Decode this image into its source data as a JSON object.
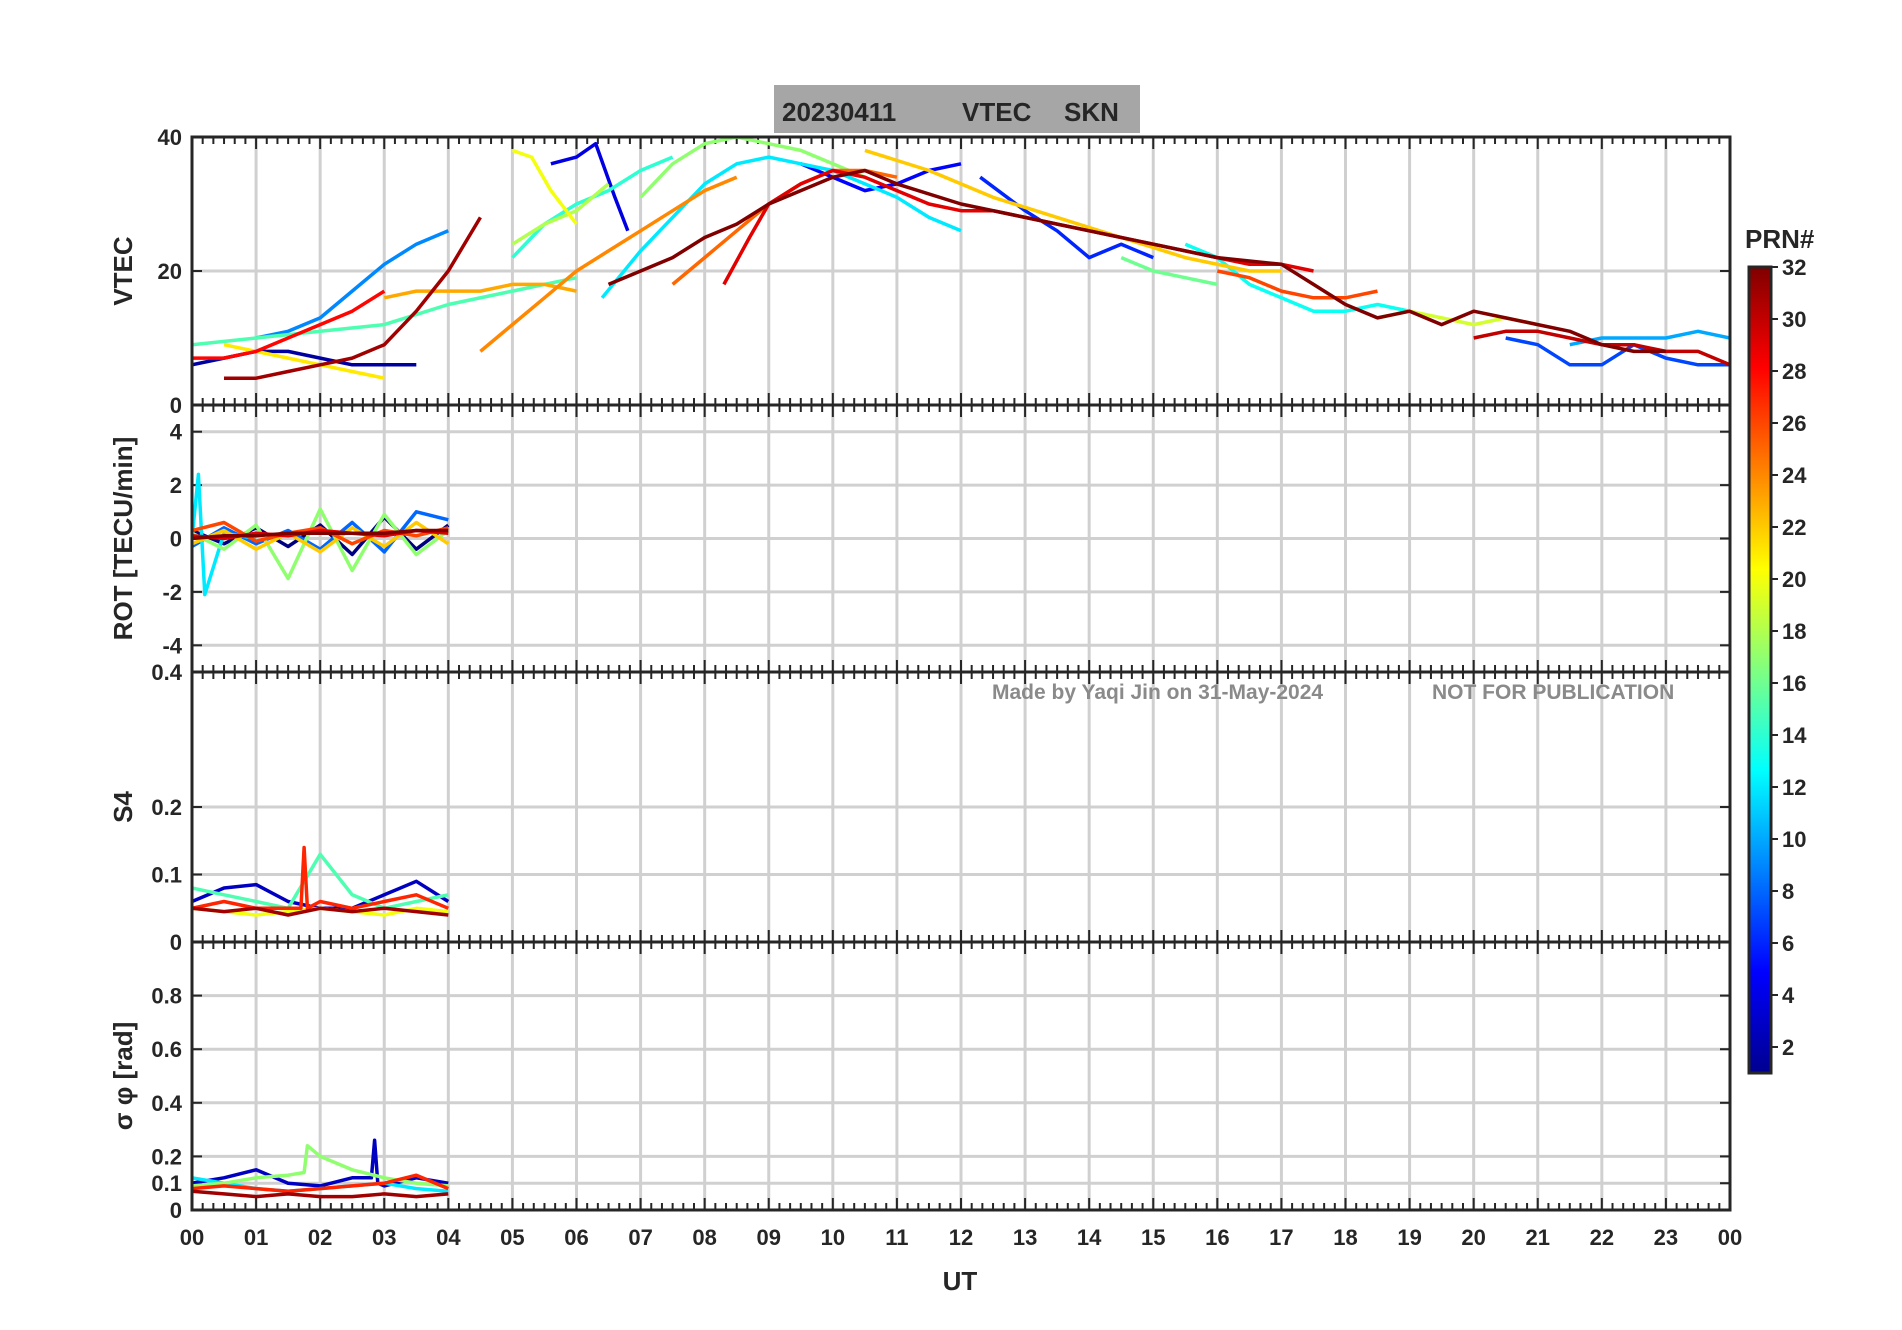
{
  "title": {
    "date": "20230411",
    "quantity": "VTEC",
    "station": "SKN"
  },
  "watermark": {
    "author": "Made by Yaqi Jin on 31-May-2024",
    "notice": "NOT FOR PUBLICATION"
  },
  "colorbar": {
    "label": "PRN#",
    "ticks": [
      "2",
      "4",
      "6",
      "8",
      "10",
      "12",
      "14",
      "16",
      "18",
      "20",
      "22",
      "24",
      "26",
      "28",
      "30",
      "32"
    ],
    "range": [
      1,
      32
    ],
    "colormap": "jet"
  },
  "chart_data": [
    {
      "type": "line",
      "panel": "vtec",
      "ylabel": "VTEC",
      "ylim": [
        0,
        40
      ],
      "yticks": [
        0,
        20,
        40
      ],
      "xlim": [
        0,
        24
      ],
      "grid": true,
      "series": [
        {
          "prn": 2,
          "x": [
            0.0,
            0.5,
            1.0,
            1.5,
            2.0,
            2.5,
            3.0,
            3.5
          ],
          "y": [
            6,
            7,
            8,
            8,
            7,
            6,
            6,
            6
          ]
        },
        {
          "prn": 4,
          "x": [
            5.6,
            6.0,
            6.3,
            6.6,
            6.8
          ],
          "y": [
            36,
            37,
            39,
            31,
            26
          ]
        },
        {
          "prn": 5,
          "x": [
            9.5,
            10.0,
            10.5,
            11.0,
            11.5,
            12.0
          ],
          "y": [
            36,
            34,
            32,
            33,
            35,
            36
          ]
        },
        {
          "prn": 6,
          "x": [
            12.3,
            13.0,
            13.5,
            14.0,
            14.5,
            15.0
          ],
          "y": [
            34,
            29,
            26,
            22,
            24,
            22
          ]
        },
        {
          "prn": 7,
          "x": [
            20.5,
            21.0,
            21.5,
            22.0,
            22.5,
            23.0,
            23.5,
            24.0
          ],
          "y": [
            10,
            9,
            6,
            6,
            9,
            7,
            6,
            6
          ]
        },
        {
          "prn": 9,
          "x": [
            1.0,
            1.5,
            2.0,
            2.5,
            3.0,
            3.5,
            4.0
          ],
          "y": [
            10,
            11,
            13,
            17,
            21,
            24,
            26
          ]
        },
        {
          "prn": 10,
          "x": [
            21.5,
            22.0,
            22.5,
            23.0,
            23.5,
            24.0
          ],
          "y": [
            9,
            10,
            10,
            10,
            11,
            10
          ]
        },
        {
          "prn": 12,
          "x": [
            6.4,
            7.0,
            7.5,
            8.0,
            8.5,
            9.0,
            9.5,
            10.0,
            10.5,
            11.0,
            11.5,
            12.0
          ],
          "y": [
            16,
            23,
            28,
            33,
            36,
            37,
            36,
            35,
            33,
            31,
            28,
            26
          ]
        },
        {
          "prn": 13,
          "x": [
            15.5,
            16.0,
            16.5,
            17.0,
            17.5,
            18.0,
            18.5,
            19.0
          ],
          "y": [
            24,
            22,
            18,
            16,
            14,
            14,
            15,
            14
          ]
        },
        {
          "prn": 14,
          "x": [
            5.0,
            5.5,
            6.0,
            6.5,
            7.0,
            7.5
          ],
          "y": [
            22,
            27,
            30,
            32,
            35,
            37
          ]
        },
        {
          "prn": 15,
          "x": [
            0.0,
            1.0,
            2.0,
            3.0,
            4.0,
            5.0,
            6.0
          ],
          "y": [
            9,
            10,
            11,
            12,
            15,
            17,
            19
          ]
        },
        {
          "prn": 16,
          "x": [
            14.5,
            15.0,
            15.5,
            16.0
          ],
          "y": [
            22,
            20,
            19,
            18
          ]
        },
        {
          "prn": 17,
          "x": [
            7.0,
            7.5,
            8.0,
            8.5,
            9.0,
            9.5,
            10.0,
            10.5
          ],
          "y": [
            31,
            36,
            39,
            40,
            39,
            38,
            36,
            34
          ]
        },
        {
          "prn": 18,
          "x": [
            5.0,
            5.5,
            6.0,
            6.5
          ],
          "y": [
            24,
            27,
            29,
            33
          ]
        },
        {
          "prn": 19,
          "x": [
            18.5,
            19.0,
            19.5,
            20.0,
            20.5,
            21.0
          ],
          "y": [
            13,
            14,
            13,
            12,
            13,
            12
          ]
        },
        {
          "prn": 20,
          "x": [
            5.0,
            5.3,
            5.6,
            6.0
          ],
          "y": [
            38,
            37,
            32,
            27
          ]
        },
        {
          "prn": 21,
          "x": [
            0.5,
            1.0,
            1.5,
            2.0,
            2.5,
            3.0
          ],
          "y": [
            9,
            8,
            7,
            6,
            5,
            4
          ]
        },
        {
          "prn": 22,
          "x": [
            10.5,
            11.5,
            12.5,
            13.5,
            14.5,
            15.5,
            16.5,
            17.0
          ],
          "y": [
            38,
            35,
            31,
            28,
            25,
            22,
            20,
            20
          ]
        },
        {
          "prn": 23,
          "x": [
            3.0,
            3.5,
            4.0,
            4.5,
            5.0,
            5.5,
            6.0
          ],
          "y": [
            16,
            17,
            17,
            17,
            18,
            18,
            17
          ]
        },
        {
          "prn": 24,
          "x": [
            4.5,
            5.0,
            5.5,
            6.0,
            6.5,
            7.0,
            7.5,
            8.0,
            8.5
          ],
          "y": [
            8,
            12,
            16,
            20,
            23,
            26,
            29,
            32,
            34
          ]
        },
        {
          "prn": 25,
          "x": [
            7.5,
            8.0,
            8.5,
            9.0,
            9.5,
            10.0,
            10.5,
            11.0
          ],
          "y": [
            18,
            22,
            26,
            30,
            33,
            35,
            35,
            34
          ]
        },
        {
          "prn": 26,
          "x": [
            16.0,
            16.5,
            17.0,
            17.5,
            18.0,
            18.5
          ],
          "y": [
            20,
            19,
            17,
            16,
            16,
            17
          ]
        },
        {
          "prn": 28,
          "x": [
            0.0,
            0.5,
            1.0,
            1.5,
            2.0,
            2.5,
            3.0
          ],
          "y": [
            7,
            7,
            8,
            10,
            12,
            14,
            17
          ]
        },
        {
          "prn": 29,
          "x": [
            8.3,
            8.7,
            9.0,
            9.5,
            10.0,
            10.5,
            11.0,
            11.5,
            12.0,
            12.5,
            13.0,
            13.5,
            14.0,
            14.5,
            15.0,
            15.5,
            16.0,
            16.5,
            17.0,
            17.5
          ],
          "y": [
            18,
            25,
            30,
            33,
            35,
            34,
            32,
            30,
            29,
            29,
            28,
            27,
            26,
            25,
            24,
            23,
            22,
            21,
            21,
            20
          ]
        },
        {
          "prn": 30,
          "x": [
            20.0,
            20.5,
            21.0,
            21.5,
            22.0,
            22.5,
            23.0,
            23.5,
            24.0
          ],
          "y": [
            10,
            11,
            11,
            10,
            9,
            9,
            8,
            8,
            6
          ]
        },
        {
          "prn": 31,
          "x": [
            0.5,
            1.0,
            1.5,
            2.0,
            2.5,
            3.0,
            3.5,
            4.0,
            4.5
          ],
          "y": [
            4,
            4,
            5,
            6,
            7,
            9,
            14,
            20,
            28
          ]
        },
        {
          "prn": 32,
          "x": [
            6.5,
            7.0,
            7.5,
            8.0,
            8.5,
            9.0,
            9.5,
            10.0,
            10.5,
            11.0,
            12.0,
            13.0,
            14.0,
            15.0,
            16.0,
            17.0,
            17.5,
            18.0,
            18.5,
            19.0,
            19.5,
            20.0,
            20.5,
            21.0,
            21.5,
            22.0,
            22.5,
            23.0
          ],
          "y": [
            18,
            20,
            22,
            25,
            27,
            30,
            32,
            34,
            35,
            33,
            30,
            28,
            26,
            24,
            22,
            21,
            18,
            15,
            13,
            14,
            12,
            14,
            13,
            12,
            11,
            9,
            8,
            8
          ]
        }
      ]
    },
    {
      "type": "line",
      "panel": "rot",
      "ylabel": "ROT [TECU/min]",
      "ylim": [
        -5,
        5
      ],
      "yticks": [
        -4,
        -2,
        0,
        2,
        4
      ],
      "xlim": [
        0,
        24
      ],
      "grid": true,
      "series": [
        {
          "prn": 1,
          "x": [
            0.0,
            0.5,
            1.0,
            1.5,
            2.0,
            2.5,
            3.0,
            3.5,
            4.0
          ],
          "y": [
            0.3,
            -0.2,
            0.4,
            -0.3,
            0.5,
            -0.6,
            0.8,
            -0.4,
            0.5
          ]
        },
        {
          "prn": 8,
          "x": [
            0.0,
            0.5,
            1.0,
            1.5,
            2.0,
            2.5,
            3.0,
            3.5,
            4.0
          ],
          "y": [
            -0.3,
            0.4,
            -0.2,
            0.3,
            -0.4,
            0.6,
            -0.5,
            1.0,
            0.7
          ]
        },
        {
          "prn": 12,
          "x": [
            0.0,
            0.1,
            0.2,
            0.5,
            1.0
          ],
          "y": [
            0.0,
            2.4,
            -2.1,
            0.2,
            0.0
          ]
        },
        {
          "prn": 17,
          "x": [
            0.0,
            0.5,
            1.0,
            1.5,
            2.0,
            2.5,
            3.0,
            3.5,
            4.0
          ],
          "y": [
            0.2,
            -0.4,
            0.5,
            -1.5,
            1.1,
            -1.2,
            0.9,
            -0.6,
            0.3
          ]
        },
        {
          "prn": 22,
          "x": [
            0.0,
            0.5,
            1.0,
            1.5,
            2.0,
            2.5,
            3.0,
            3.5,
            4.0
          ],
          "y": [
            -0.2,
            0.3,
            -0.4,
            0.2,
            -0.5,
            0.4,
            -0.3,
            0.6,
            -0.2
          ]
        },
        {
          "prn": 26,
          "x": [
            0.0,
            0.5,
            1.0,
            1.5,
            2.0,
            2.5,
            3.0,
            3.5,
            4.0
          ],
          "y": [
            0.3,
            0.6,
            -0.1,
            0.2,
            0.4,
            -0.2,
            0.3,
            0.1,
            0.4
          ]
        },
        {
          "prn": 29,
          "x": [
            0.0,
            0.5,
            1.0,
            1.5,
            2.0,
            2.5,
            3.0,
            3.5,
            4.0
          ],
          "y": [
            0.1,
            0.0,
            0.2,
            0.1,
            0.3,
            0.2,
            0.1,
            0.3,
            0.2
          ]
        },
        {
          "prn": 32,
          "x": [
            0.0,
            0.5,
            1.0,
            1.5,
            2.0,
            2.5,
            3.0,
            3.5,
            4.0
          ],
          "y": [
            0.0,
            0.1,
            0.1,
            0.2,
            0.2,
            0.2,
            0.2,
            0.3,
            0.3
          ]
        }
      ]
    },
    {
      "type": "line",
      "panel": "s4",
      "ylabel": "S4",
      "ylim": [
        0,
        0.4
      ],
      "yticks": [
        0,
        0.1,
        0.2,
        0.4
      ],
      "xlim": [
        0,
        24
      ],
      "grid": true,
      "series": [
        {
          "prn": 3,
          "x": [
            0.0,
            0.5,
            1.0,
            1.5,
            2.0,
            2.5,
            3.0,
            3.5,
            4.0
          ],
          "y": [
            0.06,
            0.08,
            0.085,
            0.06,
            0.05,
            0.05,
            0.07,
            0.09,
            0.06
          ]
        },
        {
          "prn": 15,
          "x": [
            0.0,
            0.5,
            1.0,
            1.5,
            2.0,
            2.5,
            3.0,
            3.5,
            4.0
          ],
          "y": [
            0.08,
            0.07,
            0.06,
            0.05,
            0.13,
            0.07,
            0.05,
            0.06,
            0.07
          ]
        },
        {
          "prn": 20,
          "x": [
            0.0,
            0.5,
            1.0,
            1.5,
            2.0,
            2.5,
            3.0,
            3.5,
            4.0
          ],
          "y": [
            0.05,
            0.045,
            0.04,
            0.045,
            0.05,
            0.045,
            0.04,
            0.05,
            0.045
          ]
        },
        {
          "prn": 27,
          "x": [
            0.0,
            0.5,
            1.0,
            1.5,
            1.7,
            1.75,
            1.8,
            2.0,
            2.5,
            3.0,
            3.5,
            4.0
          ],
          "y": [
            0.05,
            0.06,
            0.05,
            0.05,
            0.05,
            0.14,
            0.05,
            0.06,
            0.05,
            0.06,
            0.07,
            0.05
          ]
        },
        {
          "prn": 31,
          "x": [
            0.0,
            0.5,
            1.0,
            1.5,
            2.0,
            2.5,
            3.0,
            3.5,
            4.0
          ],
          "y": [
            0.05,
            0.045,
            0.05,
            0.04,
            0.05,
            0.045,
            0.05,
            0.045,
            0.04
          ]
        }
      ]
    },
    {
      "type": "line",
      "panel": "sigma_phi",
      "ylabel": "σ φ [rad]",
      "ylim": [
        0,
        1
      ],
      "yticks": [
        0,
        0.1,
        0.2,
        0.4,
        0.6,
        0.8
      ],
      "xlim": [
        0,
        24
      ],
      "xlabel": "UT",
      "xticks": [
        "00",
        "01",
        "02",
        "03",
        "04",
        "05",
        "06",
        "07",
        "08",
        "09",
        "10",
        "11",
        "12",
        "13",
        "14",
        "15",
        "16",
        "17",
        "18",
        "19",
        "20",
        "21",
        "22",
        "23",
        "00"
      ],
      "grid": true,
      "series": [
        {
          "prn": 3,
          "x": [
            0.0,
            0.5,
            1.0,
            1.5,
            2.0,
            2.5,
            2.8,
            2.85,
            2.9,
            3.0,
            3.5,
            4.0
          ],
          "y": [
            0.1,
            0.12,
            0.15,
            0.1,
            0.09,
            0.12,
            0.12,
            0.26,
            0.1,
            0.09,
            0.12,
            0.1
          ]
        },
        {
          "prn": 12,
          "x": [
            0.0,
            0.5,
            1.0,
            1.5,
            2.0,
            2.5,
            3.0,
            3.5,
            4.0
          ],
          "y": [
            0.12,
            0.1,
            0.08,
            0.07,
            0.08,
            0.09,
            0.1,
            0.08,
            0.07
          ]
        },
        {
          "prn": 17,
          "x": [
            0.0,
            0.5,
            1.0,
            1.5,
            1.75,
            1.8,
            2.0,
            2.5,
            3.0,
            3.5,
            4.0
          ],
          "y": [
            0.09,
            0.1,
            0.12,
            0.13,
            0.14,
            0.24,
            0.2,
            0.15,
            0.12,
            0.1,
            0.09
          ]
        },
        {
          "prn": 27,
          "x": [
            0.0,
            0.5,
            1.0,
            1.5,
            2.0,
            2.5,
            3.0,
            3.5,
            4.0
          ],
          "y": [
            0.08,
            0.09,
            0.08,
            0.07,
            0.08,
            0.09,
            0.1,
            0.13,
            0.08
          ]
        },
        {
          "prn": 31,
          "x": [
            0.0,
            0.5,
            1.0,
            1.5,
            2.0,
            2.5,
            3.0,
            3.5,
            4.0
          ],
          "y": [
            0.07,
            0.06,
            0.05,
            0.06,
            0.05,
            0.05,
            0.06,
            0.05,
            0.06
          ]
        }
      ]
    }
  ]
}
